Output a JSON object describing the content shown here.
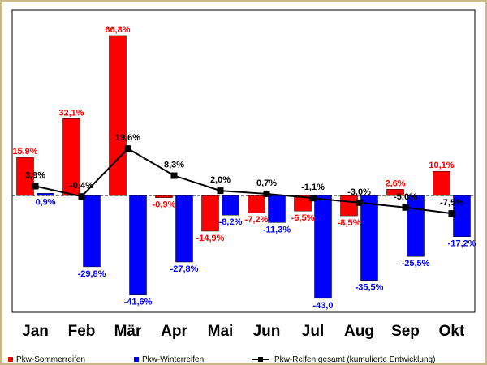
{
  "chart_data": {
    "type": "bar",
    "categories": [
      "Jan",
      "Feb",
      "Mär",
      "Apr",
      "Mai",
      "Jun",
      "Jul",
      "Aug",
      "Sep",
      "Okt"
    ],
    "series": [
      {
        "name": "Pkw-Sommerreifen",
        "kind": "bar",
        "color": "#ff0000",
        "values": [
          15.9,
          32.1,
          66.8,
          -0.9,
          -14.9,
          -7.2,
          -6.5,
          -8.5,
          2.6,
          10.1
        ],
        "labels": [
          "15,9%",
          "32,1%",
          "66,8%",
          "-0,9%",
          "-14,9%",
          "-7,2%",
          "-6,5%",
          "-8,5%",
          "2,6%",
          "10,1%"
        ]
      },
      {
        "name": "Pkw-Winterreifen",
        "kind": "bar",
        "color": "#0000ff",
        "values": [
          0.9,
          -29.8,
          -41.6,
          -27.8,
          -8.2,
          -11.3,
          -43.0,
          -35.5,
          -25.5,
          -17.2
        ],
        "labels": [
          "0,9%",
          "-29,8%",
          "-41,6%",
          "-27,8%",
          "-8,2%",
          "-11,3%",
          "-43,0",
          "-35,5%",
          "-25,5%",
          "-17,2%"
        ]
      },
      {
        "name": "Pkw-Reifen gesamt (kumulierte Entwicklung)",
        "kind": "line",
        "color": "#000000",
        "values": [
          3.9,
          -0.4,
          19.6,
          8.3,
          2.0,
          0.7,
          -1.1,
          -3.0,
          -5.0,
          -7.5
        ],
        "labels": [
          "3,9%",
          "-0,4%",
          "19,6%",
          "8,3%",
          "2,0%",
          "0,7%",
          "-1,1%",
          "-3,0%",
          "-5,0%",
          "-7,5%"
        ]
      }
    ],
    "xlabel": "",
    "ylabel": "",
    "ylim": [
      -45,
      70
    ],
    "grid": false,
    "legend_position": "bottom"
  }
}
